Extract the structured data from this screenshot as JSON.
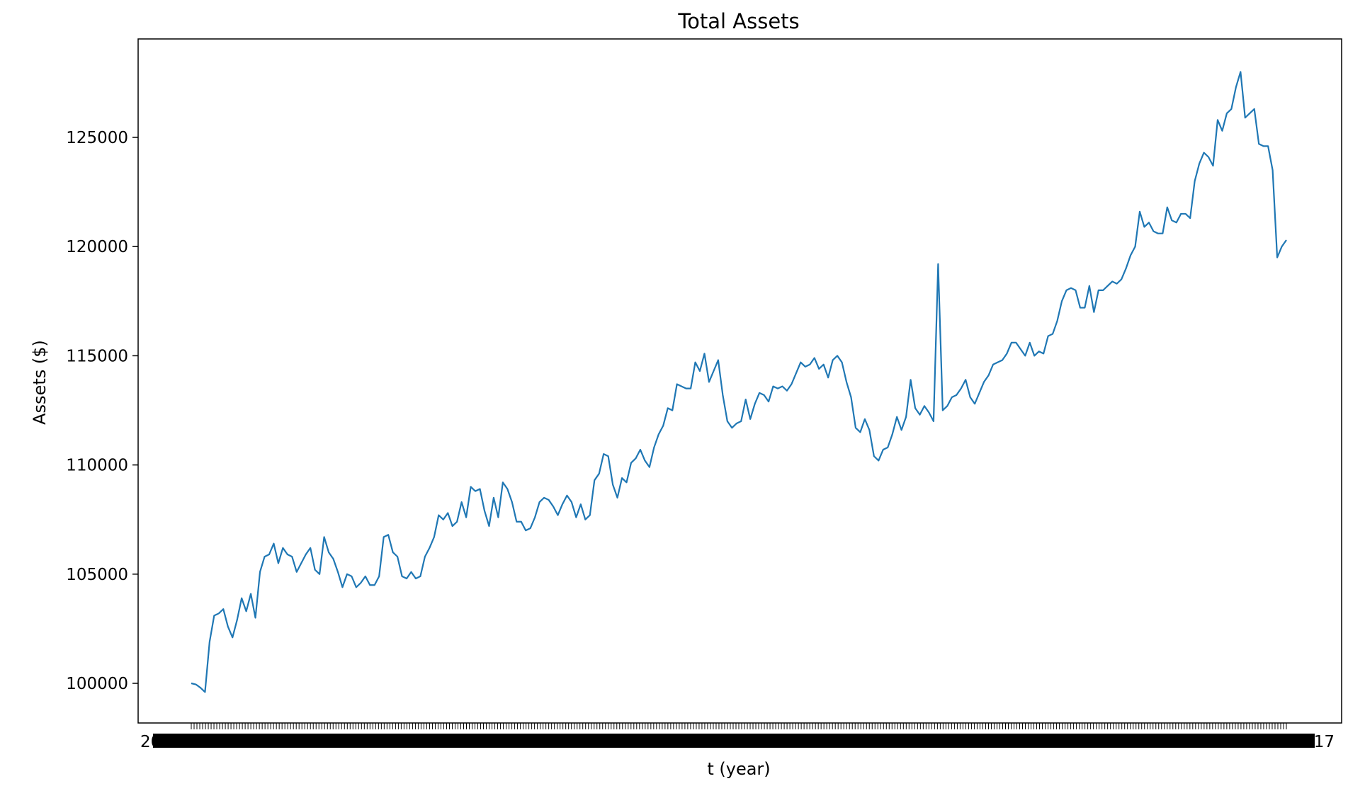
{
  "chart_data": {
    "type": "line",
    "title": "Total Assets",
    "xlabel": "t (year)",
    "ylabel": "Assets ($)",
    "ylim": [
      98000,
      130000
    ],
    "yticks": [
      100000,
      105000,
      110000,
      115000,
      120000,
      125000
    ],
    "ytick_labels": [
      "100000",
      "105000",
      "110000",
      "115000",
      "120000",
      "125000"
    ],
    "x_tick_count": 387,
    "x_tick_text_left": "2009",
    "x_tick_text_right": "2017",
    "grid": false,
    "series": [
      {
        "name": "Total Assets",
        "color": "#1f77b4",
        "values": [
          100000,
          99950,
          99800,
          99600,
          101900,
          103100,
          103200,
          103400,
          102600,
          102100,
          102900,
          103900,
          103300,
          104100,
          103000,
          105100,
          105800,
          105900,
          106400,
          105500,
          106200,
          105900,
          105800,
          105100,
          105500,
          105900,
          106200,
          105200,
          105000,
          106700,
          106000,
          105700,
          105100,
          104400,
          105000,
          104900,
          104400,
          104600,
          104900,
          104500,
          104500,
          104900,
          106700,
          106800,
          106000,
          105800,
          104900,
          104800,
          105100,
          104800,
          104900,
          105800,
          106200,
          106700,
          107700,
          107500,
          107800,
          107200,
          107400,
          108300,
          107600,
          109000,
          108800,
          108900,
          107900,
          107200,
          108500,
          107600,
          109200,
          108900,
          108300,
          107400,
          107400,
          107000,
          107100,
          107600,
          108300,
          108500,
          108400,
          108100,
          107700,
          108200,
          108600,
          108300,
          107600,
          108200,
          107500,
          107700,
          109300,
          109600,
          110500,
          110400,
          109100,
          108500,
          109400,
          109200,
          110100,
          110300,
          110700,
          110200,
          109900,
          110800,
          111400,
          111800,
          112600,
          112500,
          113700,
          113600,
          113500,
          113500,
          114700,
          114300,
          115100,
          113800,
          114300,
          114800,
          113200,
          112000,
          111700,
          111900,
          112000,
          113000,
          112100,
          112800,
          113300,
          113200,
          112900,
          113600,
          113500,
          113600,
          113400,
          113700,
          114200,
          114700,
          114500,
          114600,
          114900,
          114400,
          114600,
          114000,
          114800,
          115000,
          114700,
          113800,
          113100,
          111700,
          111500,
          112100,
          111600,
          110400,
          110200,
          110700,
          110800,
          111400,
          112200,
          111600,
          112200,
          113900,
          112600,
          112300,
          112700,
          112400,
          112000,
          119200,
          112500,
          112700,
          113100,
          113200,
          113500,
          113900,
          113100,
          112800,
          113300,
          113800,
          114100,
          114600,
          114700,
          114800,
          115100,
          115600,
          115600,
          115300,
          115000,
          115600,
          115000,
          115200,
          115100,
          115900,
          116000,
          116600,
          117500,
          118000,
          118100,
          118000,
          117200,
          117200,
          118200,
          117000,
          118000,
          118000,
          118200,
          118400,
          118300,
          118500,
          119000,
          119600,
          120000,
          121600,
          120900,
          121100,
          120700,
          120600,
          120600,
          121800,
          121200,
          121100,
          121500,
          121500,
          121300,
          123000,
          123800,
          124300,
          124100,
          123700,
          125800,
          125300,
          126100,
          126300,
          127300,
          128000,
          125900,
          126100,
          126300,
          124700,
          124600,
          124600,
          123500,
          119500,
          120000,
          120300
        ]
      }
    ]
  }
}
